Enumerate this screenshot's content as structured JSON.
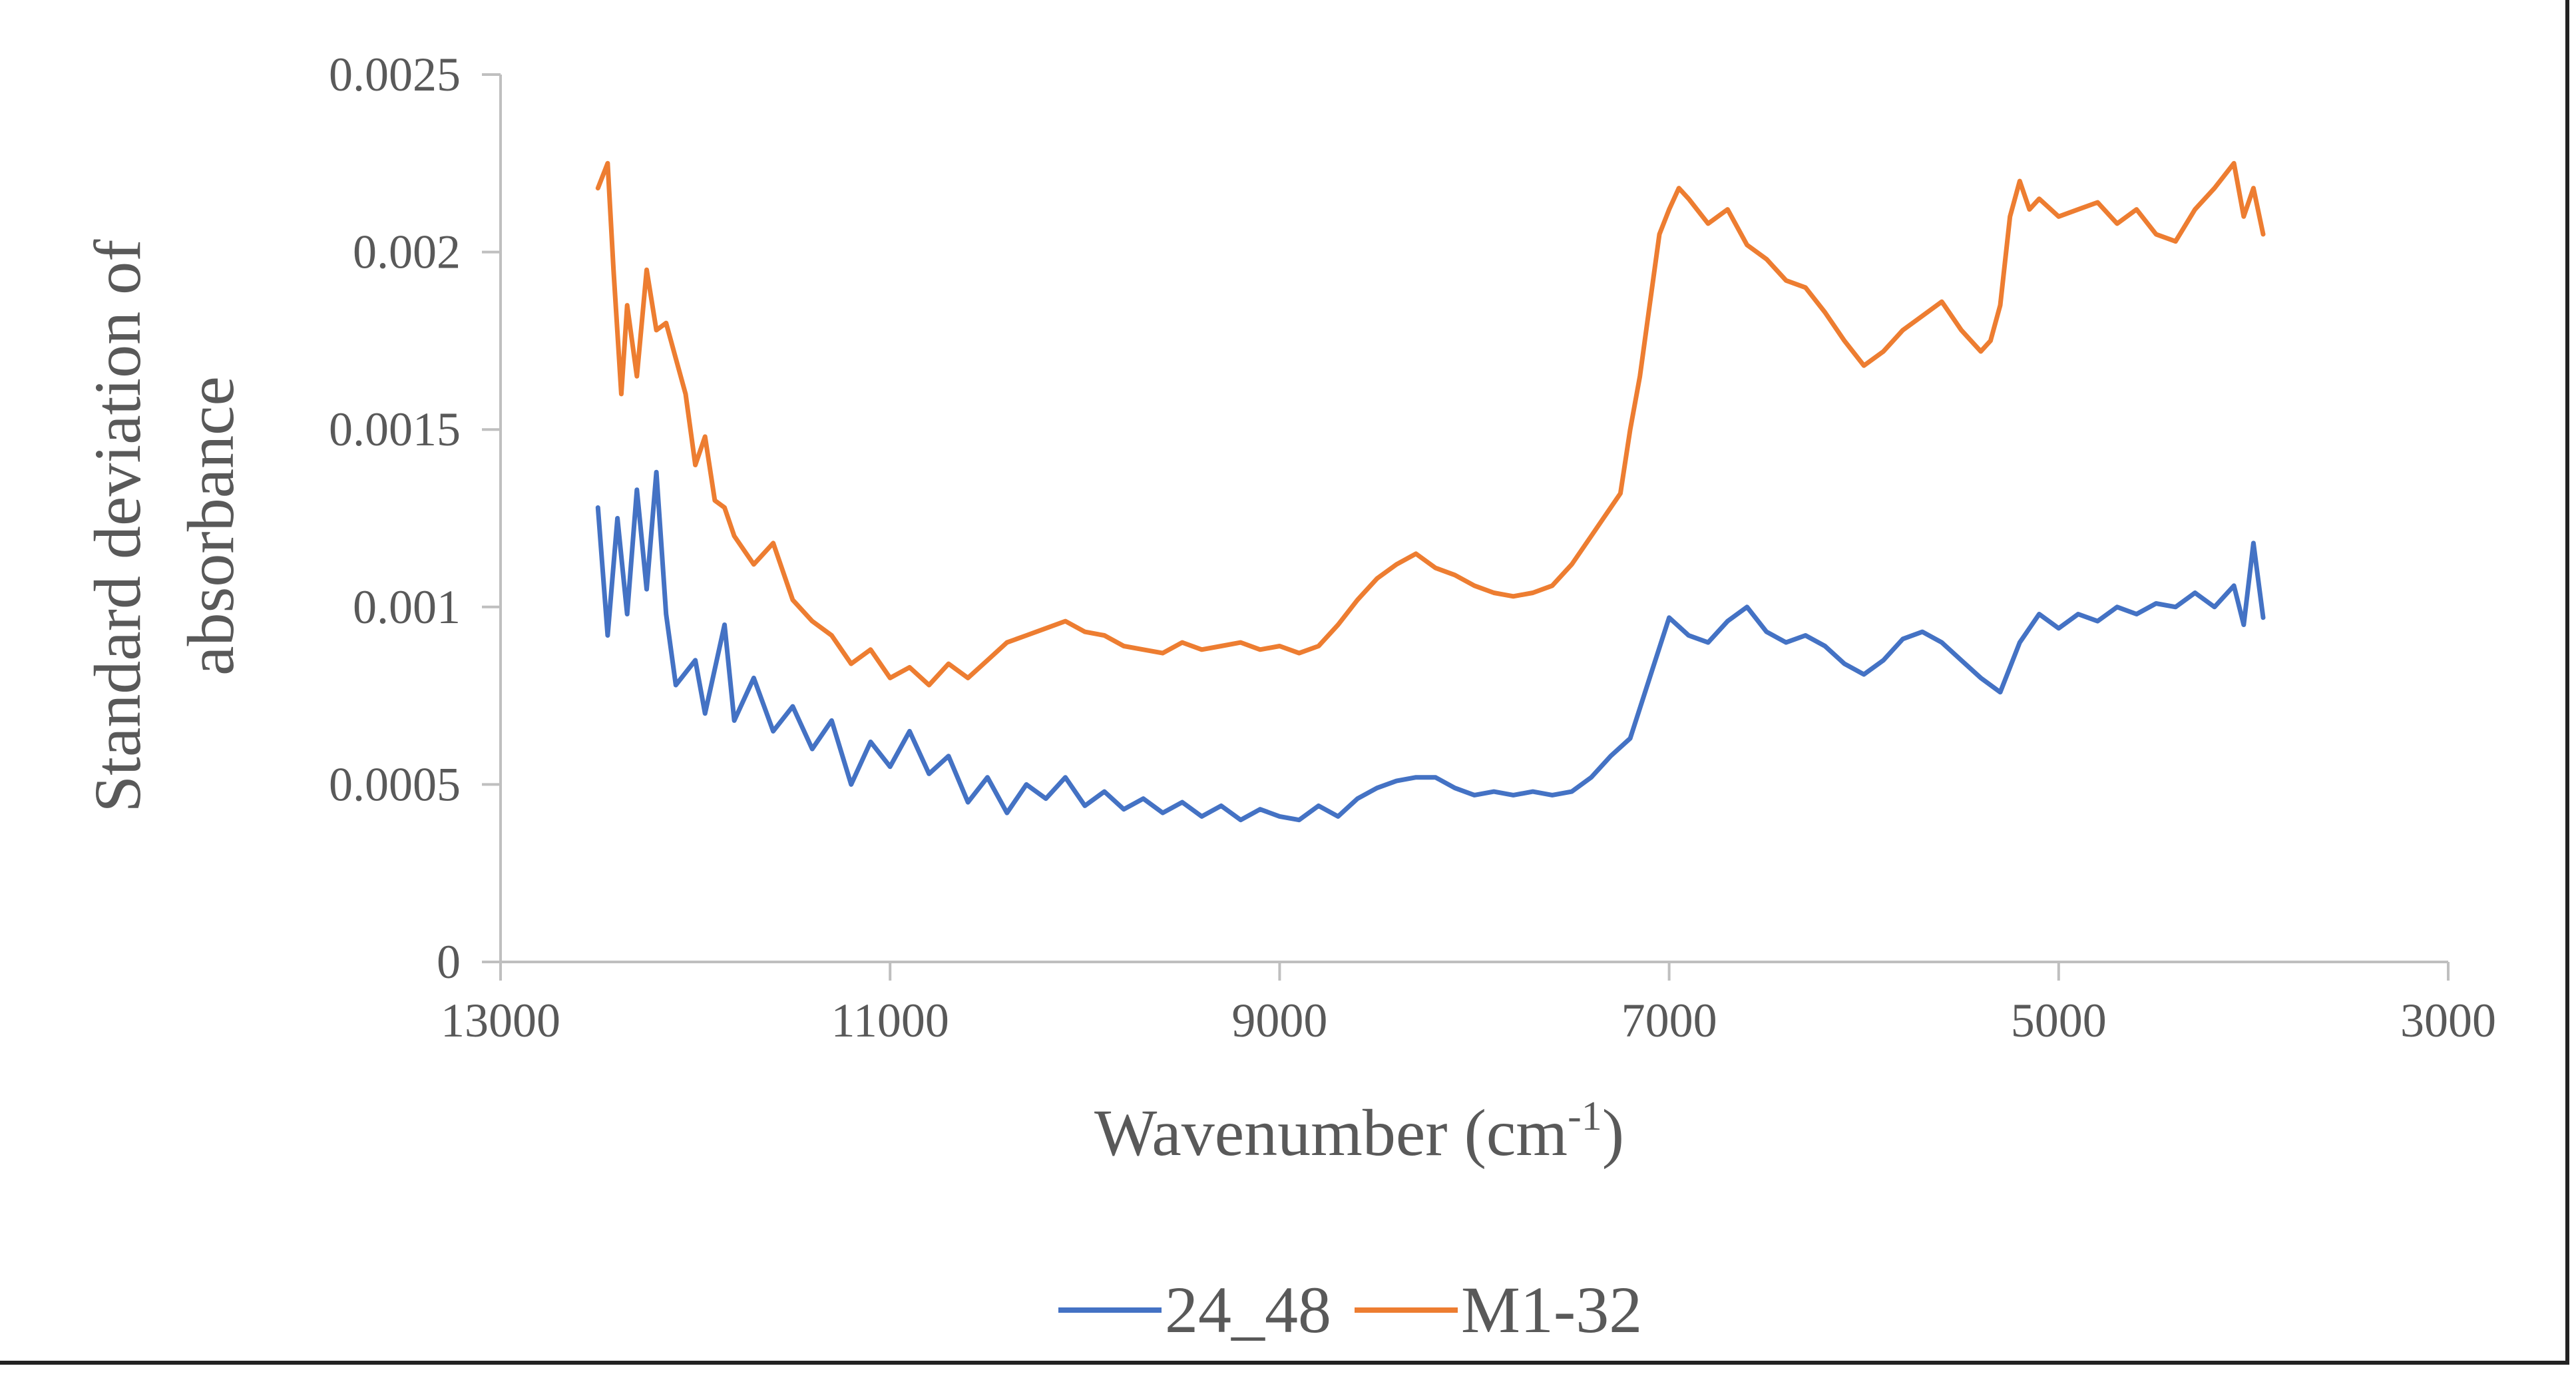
{
  "chart_data": {
    "type": "line",
    "xlabel_main": "Wavenumber (cm",
    "xlabel_sup": "-1",
    "xlabel_close": ")",
    "ylabel_line1": "Standard deviation of",
    "ylabel_line2": "absorbance",
    "xlim": [
      13000,
      3000
    ],
    "ylim": [
      0,
      0.0025
    ],
    "x_ticks": [
      13000,
      11000,
      9000,
      7000,
      5000,
      3000
    ],
    "x_tick_labels": [
      "13000",
      "11000",
      "9000",
      "7000",
      "5000",
      "3000"
    ],
    "y_ticks": [
      0,
      0.0005,
      0.001,
      0.0015,
      0.002,
      0.0025
    ],
    "y_tick_labels": [
      "0",
      "0.0005",
      "0.001",
      "0.0015",
      "0.002",
      "0.0025"
    ],
    "grid": false,
    "legend_placement": "bottom-center",
    "series": [
      {
        "name": "24_48",
        "color": "#4472C4",
        "points": [
          [
            12500,
            0.00128
          ],
          [
            12450,
            0.00092
          ],
          [
            12400,
            0.00125
          ],
          [
            12350,
            0.00098
          ],
          [
            12300,
            0.00133
          ],
          [
            12250,
            0.00105
          ],
          [
            12200,
            0.00138
          ],
          [
            12150,
            0.00098
          ],
          [
            12100,
            0.00078
          ],
          [
            12000,
            0.00085
          ],
          [
            11950,
            0.0007
          ],
          [
            11850,
            0.00095
          ],
          [
            11800,
            0.00068
          ],
          [
            11700,
            0.0008
          ],
          [
            11600,
            0.00065
          ],
          [
            11500,
            0.00072
          ],
          [
            11400,
            0.0006
          ],
          [
            11300,
            0.00068
          ],
          [
            11200,
            0.0005
          ],
          [
            11100,
            0.00062
          ],
          [
            11000,
            0.00055
          ],
          [
            10900,
            0.00065
          ],
          [
            10800,
            0.00053
          ],
          [
            10700,
            0.00058
          ],
          [
            10600,
            0.00045
          ],
          [
            10500,
            0.00052
          ],
          [
            10400,
            0.00042
          ],
          [
            10300,
            0.0005
          ],
          [
            10200,
            0.00046
          ],
          [
            10100,
            0.00052
          ],
          [
            10000,
            0.00044
          ],
          [
            9900,
            0.00048
          ],
          [
            9800,
            0.00043
          ],
          [
            9700,
            0.00046
          ],
          [
            9600,
            0.00042
          ],
          [
            9500,
            0.00045
          ],
          [
            9400,
            0.00041
          ],
          [
            9300,
            0.00044
          ],
          [
            9200,
            0.0004
          ],
          [
            9100,
            0.00043
          ],
          [
            9000,
            0.00041
          ],
          [
            8900,
            0.0004
          ],
          [
            8800,
            0.00044
          ],
          [
            8700,
            0.00041
          ],
          [
            8600,
            0.00046
          ],
          [
            8500,
            0.00049
          ],
          [
            8400,
            0.00051
          ],
          [
            8300,
            0.00052
          ],
          [
            8200,
            0.00052
          ],
          [
            8100,
            0.00049
          ],
          [
            8000,
            0.00047
          ],
          [
            7900,
            0.00048
          ],
          [
            7800,
            0.00047
          ],
          [
            7700,
            0.00048
          ],
          [
            7600,
            0.00047
          ],
          [
            7500,
            0.00048
          ],
          [
            7400,
            0.00052
          ],
          [
            7300,
            0.00058
          ],
          [
            7200,
            0.00063
          ],
          [
            7100,
            0.0008
          ],
          [
            7000,
            0.00097
          ],
          [
            6900,
            0.00092
          ],
          [
            6800,
            0.0009
          ],
          [
            6700,
            0.00096
          ],
          [
            6600,
            0.001
          ],
          [
            6500,
            0.00093
          ],
          [
            6400,
            0.0009
          ],
          [
            6300,
            0.00092
          ],
          [
            6200,
            0.00089
          ],
          [
            6100,
            0.00084
          ],
          [
            6000,
            0.00081
          ],
          [
            5900,
            0.00085
          ],
          [
            5800,
            0.00091
          ],
          [
            5700,
            0.00093
          ],
          [
            5600,
            0.0009
          ],
          [
            5500,
            0.00085
          ],
          [
            5400,
            0.0008
          ],
          [
            5300,
            0.00076
          ],
          [
            5200,
            0.0009
          ],
          [
            5100,
            0.00098
          ],
          [
            5000,
            0.00094
          ],
          [
            4900,
            0.00098
          ],
          [
            4800,
            0.00096
          ],
          [
            4700,
            0.001
          ],
          [
            4600,
            0.00098
          ],
          [
            4500,
            0.00101
          ],
          [
            4400,
            0.001
          ],
          [
            4300,
            0.00104
          ],
          [
            4200,
            0.001
          ],
          [
            4100,
            0.00106
          ],
          [
            4050,
            0.00095
          ],
          [
            4000,
            0.00118
          ],
          [
            3950,
            0.00097
          ]
        ]
      },
      {
        "name": "M1-32",
        "color": "#ED7D31",
        "points": [
          [
            12500,
            0.00218
          ],
          [
            12450,
            0.00225
          ],
          [
            12420,
            0.00195
          ],
          [
            12380,
            0.0016
          ],
          [
            12350,
            0.00185
          ],
          [
            12300,
            0.00165
          ],
          [
            12250,
            0.00195
          ],
          [
            12200,
            0.00178
          ],
          [
            12150,
            0.0018
          ],
          [
            12100,
            0.0017
          ],
          [
            12050,
            0.0016
          ],
          [
            12000,
            0.0014
          ],
          [
            11950,
            0.00148
          ],
          [
            11900,
            0.0013
          ],
          [
            11850,
            0.00128
          ],
          [
            11800,
            0.0012
          ],
          [
            11700,
            0.00112
          ],
          [
            11600,
            0.00118
          ],
          [
            11500,
            0.00102
          ],
          [
            11400,
            0.00096
          ],
          [
            11300,
            0.00092
          ],
          [
            11200,
            0.00084
          ],
          [
            11100,
            0.00088
          ],
          [
            11000,
            0.0008
          ],
          [
            10900,
            0.00083
          ],
          [
            10800,
            0.00078
          ],
          [
            10700,
            0.00084
          ],
          [
            10600,
            0.0008
          ],
          [
            10500,
            0.00085
          ],
          [
            10400,
            0.0009
          ],
          [
            10300,
            0.00092
          ],
          [
            10200,
            0.00094
          ],
          [
            10100,
            0.00096
          ],
          [
            10000,
            0.00093
          ],
          [
            9900,
            0.00092
          ],
          [
            9800,
            0.00089
          ],
          [
            9700,
            0.00088
          ],
          [
            9600,
            0.00087
          ],
          [
            9500,
            0.0009
          ],
          [
            9400,
            0.00088
          ],
          [
            9300,
            0.00089
          ],
          [
            9200,
            0.0009
          ],
          [
            9100,
            0.00088
          ],
          [
            9000,
            0.00089
          ],
          [
            8900,
            0.00087
          ],
          [
            8800,
            0.00089
          ],
          [
            8700,
            0.00095
          ],
          [
            8600,
            0.00102
          ],
          [
            8500,
            0.00108
          ],
          [
            8400,
            0.00112
          ],
          [
            8300,
            0.00115
          ],
          [
            8200,
            0.00111
          ],
          [
            8100,
            0.00109
          ],
          [
            8000,
            0.00106
          ],
          [
            7900,
            0.00104
          ],
          [
            7800,
            0.00103
          ],
          [
            7700,
            0.00104
          ],
          [
            7600,
            0.00106
          ],
          [
            7500,
            0.00112
          ],
          [
            7400,
            0.0012
          ],
          [
            7300,
            0.00128
          ],
          [
            7250,
            0.00132
          ],
          [
            7200,
            0.0015
          ],
          [
            7150,
            0.00165
          ],
          [
            7100,
            0.00185
          ],
          [
            7050,
            0.00205
          ],
          [
            7000,
            0.00212
          ],
          [
            6950,
            0.00218
          ],
          [
            6900,
            0.00215
          ],
          [
            6800,
            0.00208
          ],
          [
            6700,
            0.00212
          ],
          [
            6600,
            0.00202
          ],
          [
            6500,
            0.00198
          ],
          [
            6400,
            0.00192
          ],
          [
            6300,
            0.0019
          ],
          [
            6200,
            0.00183
          ],
          [
            6100,
            0.00175
          ],
          [
            6000,
            0.00168
          ],
          [
            5900,
            0.00172
          ],
          [
            5800,
            0.00178
          ],
          [
            5700,
            0.00182
          ],
          [
            5600,
            0.00186
          ],
          [
            5500,
            0.00178
          ],
          [
            5400,
            0.00172
          ],
          [
            5350,
            0.00175
          ],
          [
            5300,
            0.00185
          ],
          [
            5250,
            0.0021
          ],
          [
            5200,
            0.0022
          ],
          [
            5150,
            0.00212
          ],
          [
            5100,
            0.00215
          ],
          [
            5000,
            0.0021
          ],
          [
            4900,
            0.00212
          ],
          [
            4800,
            0.00214
          ],
          [
            4700,
            0.00208
          ],
          [
            4600,
            0.00212
          ],
          [
            4500,
            0.00205
          ],
          [
            4400,
            0.00203
          ],
          [
            4300,
            0.00212
          ],
          [
            4200,
            0.00218
          ],
          [
            4100,
            0.00225
          ],
          [
            4050,
            0.0021
          ],
          [
            4000,
            0.00218
          ],
          [
            3950,
            0.00205
          ]
        ]
      }
    ]
  }
}
